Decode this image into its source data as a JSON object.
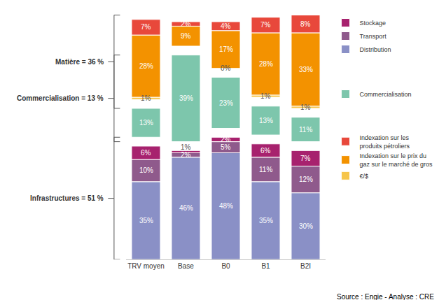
{
  "chart_data": {
    "type": "bar",
    "stacked": true,
    "data_labels": true,
    "tick_labels": "x",
    "legend": "right",
    "categories": [
      "TRV moyen",
      "Base",
      "B0",
      "B1",
      "B2I"
    ],
    "series": [
      {
        "name": "Distribution",
        "color": "#8a90c6",
        "values": [
          35,
          46,
          48,
          35,
          30
        ],
        "value_labels": [
          "35%",
          "46%",
          "48%",
          "35%",
          "30%"
        ]
      },
      {
        "name": "Transport",
        "color": "#8f5a8c",
        "values": [
          10,
          2,
          5,
          11,
          12
        ],
        "value_labels": [
          "10%",
          "2%",
          "5%",
          "11%",
          "12%"
        ]
      },
      {
        "name": "Stockage",
        "color": "#a7226e",
        "values": [
          6,
          1,
          2,
          6,
          7
        ],
        "value_labels": [
          "6%",
          "1%",
          "2%",
          "6%",
          "7%"
        ]
      },
      {
        "name": "Commercialisation",
        "color": "#7dc6ac",
        "values": [
          13,
          39,
          23,
          13,
          11
        ],
        "value_labels": [
          "13%",
          "39%",
          "23%",
          "13%",
          "11%"
        ]
      },
      {
        "name": "€/$",
        "color": "#f6c54a",
        "values": [
          1,
          null,
          0,
          1,
          1
        ],
        "value_labels": [
          "1%",
          null,
          "0%",
          "1%",
          "1%"
        ]
      },
      {
        "name": "Indexation sur le prix du gaz sur le marché de gros",
        "color": "#f39200",
        "values": [
          28,
          9,
          17,
          28,
          33
        ],
        "value_labels": [
          "28%",
          "9%",
          "17%",
          "28%",
          "33%"
        ]
      },
      {
        "name": "Indexation sur les produits pétroliers",
        "color": "#e8483b",
        "values": [
          7,
          2,
          4,
          7,
          8
        ],
        "value_labels": [
          "7%",
          "2%",
          "4%",
          "7%",
          "8%"
        ]
      }
    ],
    "groups": [
      {
        "label": "Infrastructures = 51 %",
        "series": [
          "Distribution",
          "Transport",
          "Stockage"
        ]
      },
      {
        "label": "Commercialisation = 13 %",
        "series": [
          "Commercialisation"
        ]
      },
      {
        "label": "Matière = 36 %",
        "series": [
          "€/$",
          "Indexation sur le prix du gaz sur le marché de gros",
          "Indexation sur les produits pétroliers"
        ]
      }
    ],
    "source": "Source : Engie - Analyse : CRE"
  }
}
